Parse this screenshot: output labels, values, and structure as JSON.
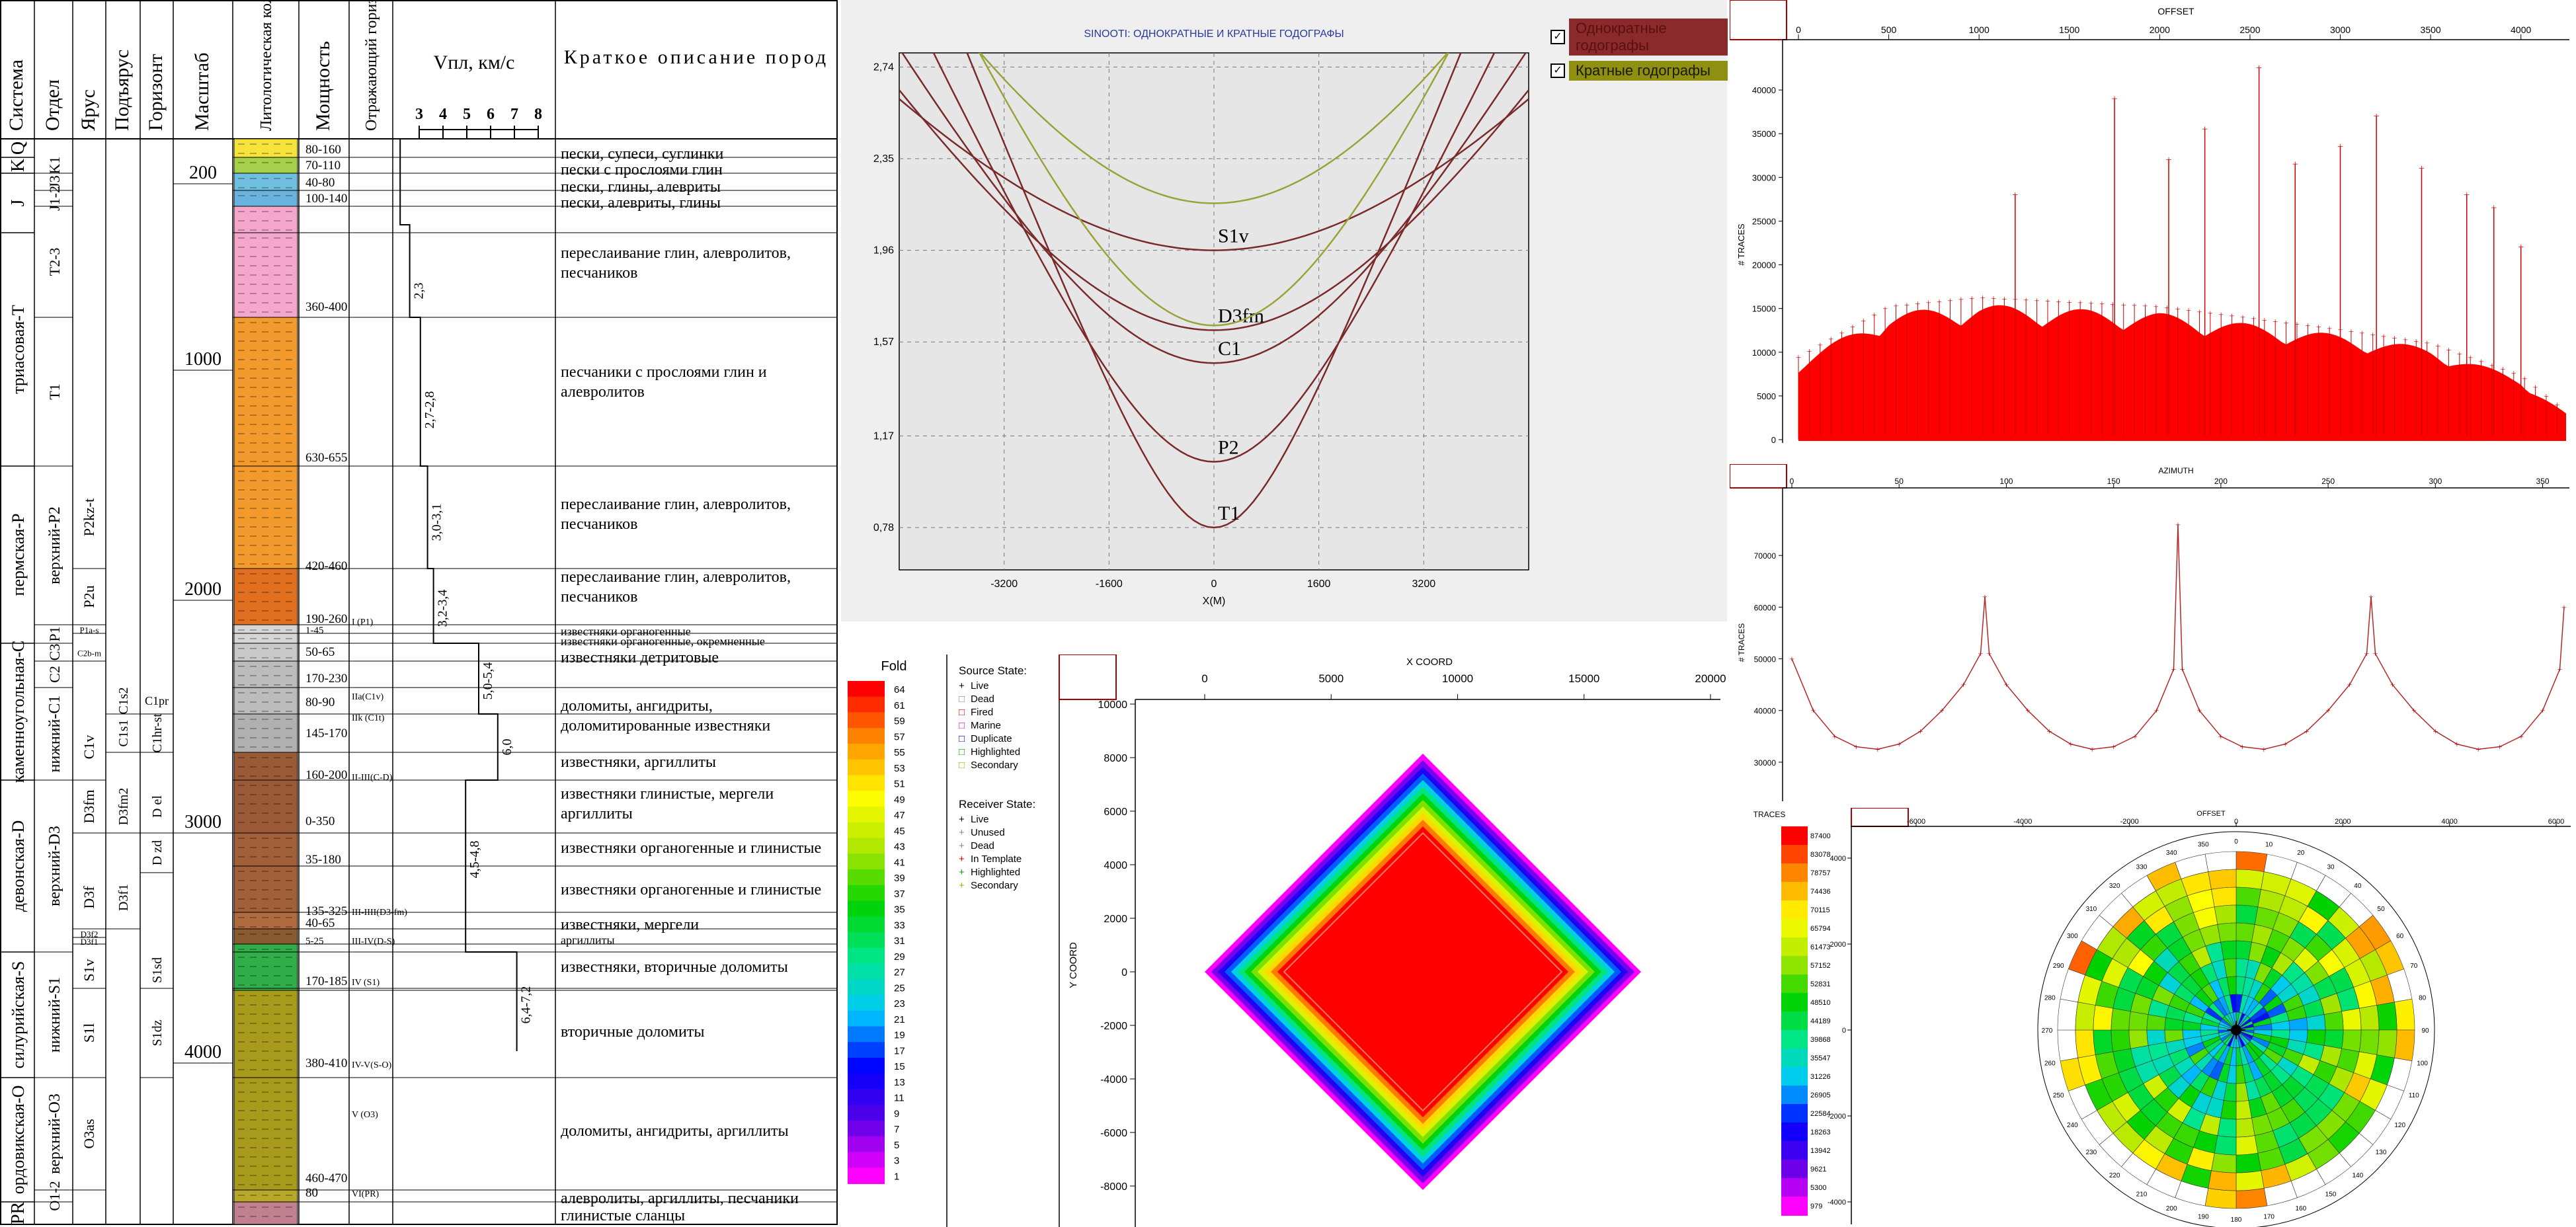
{
  "colors": {
    "section_grid": "#000000",
    "hodo_single": "#7a2a2a",
    "hodo_multiple": "#9aa23a",
    "hodo_bg": "#ececec",
    "fold_red": "#ff0000",
    "trace_red": "#ff0000",
    "azimuth_line": "#b42828"
  },
  "column_headers": {
    "system": "Система",
    "division": "Отдел",
    "stage": "Ярус",
    "substage": "Подъярус",
    "horizon": "Горизонт",
    "scale": "Масштаб",
    "lithology": "Литологическая колонка",
    "thickness": "Мощность",
    "reflector": "Отражающий горизонт",
    "velocity": "Vпл, км/с",
    "description": "Краткое описание пород"
  },
  "velocity_ticks": [
    "3",
    "4",
    "5",
    "6",
    "7",
    "8"
  ],
  "scale_marks": [
    "200",
    "1000",
    "2000",
    "3000",
    "4000"
  ],
  "systems": [
    "Q",
    "K",
    "J",
    "триасовая-T",
    "пермская-P",
    "каменноугольная-C",
    "девонская-D",
    "силурийская-S",
    "ордовикская-O",
    "PR"
  ],
  "divisions": [
    "K1",
    "J3",
    "J1-2",
    "T2-3",
    "T1",
    "верхний-P2",
    "P1",
    "C3",
    "C2",
    "нижний-C1",
    "верхний-D3",
    "нижний-S1",
    "верхний-O3",
    "O1-2"
  ],
  "stages": [
    "P2kz-t",
    "P2u",
    "P1a-s",
    "C2b-m",
    "C1v",
    "D3fm",
    "D3f",
    "D3f2",
    "D3f1",
    "S1v",
    "S1l",
    "O3as"
  ],
  "substages": [
    "C1s2",
    "C1s1",
    "D3fm2",
    "D3f1"
  ],
  "horizons": [
    "C1pr",
    "C1hr-st",
    "D el",
    "D zd",
    "S1sd",
    "S1dz"
  ],
  "thickness": [
    "80-160",
    "70-110",
    "40-80",
    "100-140",
    "360-400",
    "630-655",
    "420-460",
    "190-260",
    "1-45",
    "50-65",
    "170-230",
    "80-90",
    "145-170",
    "160-200",
    "0-350",
    "35-180",
    "135-325",
    "40-65",
    "5-25",
    "170-185",
    "380-410",
    "460-470",
    "80"
  ],
  "reflectors": [
    "I (P1)",
    "IIa(C1v)",
    "IIk (C1t)",
    "II-III(C-D)",
    "III-IIII(D3-fm)",
    "III-IV(D-S)",
    "IV (S1)",
    "IV-V(S-O)",
    "V (O3)",
    "VI(PR)"
  ],
  "velocity_labels": [
    "2,3",
    "2,7-2,8",
    "3,0-3,1",
    "3,2-3,4",
    "5,0-5,4",
    "6,0",
    "4,5-4,8",
    "6,4-7,2"
  ],
  "descriptions": [
    "пески, супеси, суглинки",
    "пески с прослоями глин",
    "пески, глины, алевриты",
    "пески, алевриты, глины",
    "переслаивание глин, алевролитов, песчаников",
    "песчаники с прослоями глин и алевролитов",
    "переслаивание глин, алевролитов, песчаников",
    "переслаивание глин, алевролитов, песчаников",
    "известняки органогенные",
    "известняки органогенные, окремненные",
    "известняки детритовые",
    "доломиты, ангидриты, доломитированные известняки",
    "известняки, аргиллиты",
    "известняки глинистые, мергели аргиллиты",
    "известняки органогенные и глинистые",
    "известняки органогенные и глинистые",
    "известняки, мергели",
    "аргиллиты",
    "известняки, вторичные доломиты",
    "вторичные доломиты",
    "доломиты, ангидриты, аргиллиты",
    "алевролиты, аргиллиты, песчаники",
    "глинистые сланцы"
  ],
  "hodograph": {
    "title": "SINOOTI: ОДНОКРАТНЫЕ И КРАТНЫЕ ГОДОГРАФЫ",
    "legend_single": "Однократные годографы",
    "legend_multiple": "Кратные годографы",
    "xlabel": "X(M)",
    "x_ticks": [
      "-3200",
      "-1600",
      "0",
      "1600",
      "3200"
    ],
    "y_ticks": [
      "2,74",
      "2,35",
      "1,96",
      "1,57",
      "1,17",
      "0,78"
    ],
    "curve_labels": [
      "S1v",
      "D3fm",
      "C1",
      "P2",
      "T1"
    ]
  },
  "fold_map": {
    "legend_title": "Fold",
    "legend_values": [
      "64",
      "61",
      "59",
      "57",
      "55",
      "53",
      "51",
      "49",
      "47",
      "45",
      "43",
      "41",
      "39",
      "37",
      "35",
      "33",
      "31",
      "29",
      "27",
      "25",
      "23",
      "21",
      "19",
      "17",
      "15",
      "13",
      "11",
      "9",
      "7",
      "5",
      "3",
      "1"
    ],
    "x_title": "X COORD",
    "y_title": "Y COORD",
    "x_ticks": [
      "0",
      "5000",
      "10000",
      "15000",
      "20000"
    ],
    "y_ticks": [
      "10000",
      "8000",
      "6000",
      "4000",
      "2000",
      "0",
      "-2000",
      "-4000",
      "-6000",
      "-8000"
    ],
    "source_state_title": "Source State:",
    "source_states": [
      "Live",
      "Dead",
      "Fired",
      "Marine",
      "Duplicate",
      "Highlighted",
      "Secondary"
    ],
    "receiver_state_title": "Receiver State:",
    "receiver_states": [
      "Live",
      "Unused",
      "Dead",
      "In Template",
      "Highlighted",
      "Secondary"
    ]
  },
  "offset_hist": {
    "title": "OFFSET",
    "ylabel": "# TRACES",
    "x_ticks": [
      "0",
      "500",
      "1000",
      "1500",
      "2000",
      "2500",
      "3000",
      "3500",
      "4000"
    ],
    "y_ticks": [
      "40000",
      "35000",
      "30000",
      "25000",
      "20000",
      "15000",
      "10000",
      "5000",
      "0"
    ]
  },
  "azimuth_plot": {
    "title": "AZIMUTH",
    "ylabel": "# TRACES",
    "x_ticks": [
      "0",
      "50",
      "100",
      "150",
      "200",
      "250",
      "300",
      "350"
    ],
    "y_ticks": [
      "70000",
      "60000",
      "50000",
      "40000",
      "30000"
    ]
  },
  "rose": {
    "title": "OFFSET",
    "legend_title": "TRACES",
    "x_ticks": [
      "-6000",
      "-4000",
      "-2000",
      "0",
      "2000",
      "4000",
      "6000"
    ],
    "y_ticks": [
      "4000",
      "2000",
      "0",
      "-2000",
      "-4000"
    ],
    "azimuth_labels": [
      "0",
      "10",
      "20",
      "30",
      "40",
      "50",
      "60",
      "70",
      "80",
      "90",
      "100",
      "110",
      "120",
      "130",
      "140",
      "150",
      "160",
      "170",
      "180",
      "190",
      "200",
      "210",
      "220",
      "230",
      "240",
      "250",
      "260",
      "270",
      "280",
      "290",
      "300",
      "310",
      "320",
      "330",
      "340",
      "350"
    ],
    "legend_values": [
      "87400",
      "83078",
      "78757",
      "74436",
      "70115",
      "65794",
      "61473",
      "57152",
      "52831",
      "48510",
      "44189",
      "39868",
      "35547",
      "31226",
      "26905",
      "22584",
      "18263",
      "13942",
      "9621",
      "5300",
      "979"
    ]
  },
  "chart_data": [
    {
      "type": "line",
      "title": "SINOOTI: ОДНОКРАТНЫЕ И КРАТНЫЕ ГОДОГРАФЫ",
      "xlabel": "X(M)",
      "ylabel": "",
      "xlim": [
        -4800,
        4800
      ],
      "ylim": [
        0.6,
        2.8
      ],
      "series": [
        {
          "name": "S1v",
          "kind": "single",
          "t0": 1.96,
          "vrms": 5.6
        },
        {
          "name": "D3fm",
          "kind": "single",
          "t0": 1.62,
          "vrms": 4.6
        },
        {
          "name": "C1",
          "kind": "single",
          "t0": 1.48,
          "vrms": 4.0
        },
        {
          "name": "P2",
          "kind": "single",
          "t0": 1.06,
          "vrms": 3.3
        },
        {
          "name": "T1",
          "kind": "single",
          "t0": 0.78,
          "vrms": 2.8
        },
        {
          "name": "",
          "kind": "multiple",
          "t0": 2.16,
          "vrms": 4.0
        },
        {
          "name": "",
          "kind": "multiple",
          "t0": 1.64,
          "vrms": 3.15
        }
      ]
    },
    {
      "type": "bar",
      "title": "OFFSET",
      "ylabel": "# TRACES",
      "xlim": [
        0,
        4250
      ],
      "ylim": [
        0,
        45000
      ],
      "envelope": [
        {
          "x": 0,
          "y": 9000
        },
        {
          "x": 500,
          "y": 14500
        },
        {
          "x": 1000,
          "y": 15500
        },
        {
          "x": 2000,
          "y": 14500
        },
        {
          "x": 3000,
          "y": 12000
        },
        {
          "x": 3500,
          "y": 10500
        },
        {
          "x": 4000,
          "y": 7000
        },
        {
          "x": 4250,
          "y": 3000
        }
      ],
      "spikes": [
        {
          "x": 2550,
          "y": 42500
        },
        {
          "x": 1750,
          "y": 39000
        },
        {
          "x": 3200,
          "y": 37000
        },
        {
          "x": 2250,
          "y": 35500
        },
        {
          "x": 3000,
          "y": 33500
        },
        {
          "x": 2050,
          "y": 32000
        },
        {
          "x": 3450,
          "y": 31000
        },
        {
          "x": 2750,
          "y": 31500
        },
        {
          "x": 1200,
          "y": 28000
        },
        {
          "x": 3700,
          "y": 28000
        },
        {
          "x": 4000,
          "y": 22000
        },
        {
          "x": 3850,
          "y": 26500
        }
      ]
    },
    {
      "type": "line",
      "title": "AZIMUTH",
      "ylabel": "# TRACES",
      "xlim": [
        0,
        360
      ],
      "ylim": [
        25000,
        80000
      ],
      "series": [
        {
          "name": "",
          "points": [
            {
              "x": 0,
              "y": 50000
            },
            {
              "x": 10,
              "y": 40000
            },
            {
              "x": 20,
              "y": 35000
            },
            {
              "x": 30,
              "y": 33000
            },
            {
              "x": 40,
              "y": 32500
            },
            {
              "x": 50,
              "y": 33500
            },
            {
              "x": 60,
              "y": 36000
            },
            {
              "x": 70,
              "y": 40000
            },
            {
              "x": 80,
              "y": 45000
            },
            {
              "x": 88,
              "y": 51000
            },
            {
              "x": 90,
              "y": 62000
            },
            {
              "x": 92,
              "y": 51000
            },
            {
              "x": 100,
              "y": 45000
            },
            {
              "x": 110,
              "y": 40000
            },
            {
              "x": 120,
              "y": 36000
            },
            {
              "x": 130,
              "y": 33500
            },
            {
              "x": 140,
              "y": 32500
            },
            {
              "x": 150,
              "y": 33000
            },
            {
              "x": 160,
              "y": 35000
            },
            {
              "x": 170,
              "y": 40000
            },
            {
              "x": 178,
              "y": 48000
            },
            {
              "x": 180,
              "y": 76000
            },
            {
              "x": 182,
              "y": 48000
            },
            {
              "x": 190,
              "y": 40000
            },
            {
              "x": 200,
              "y": 35000
            },
            {
              "x": 210,
              "y": 33000
            },
            {
              "x": 220,
              "y": 32500
            },
            {
              "x": 230,
              "y": 33500
            },
            {
              "x": 240,
              "y": 36000
            },
            {
              "x": 250,
              "y": 40000
            },
            {
              "x": 260,
              "y": 45000
            },
            {
              "x": 268,
              "y": 51000
            },
            {
              "x": 270,
              "y": 62000
            },
            {
              "x": 272,
              "y": 51000
            },
            {
              "x": 280,
              "y": 45000
            },
            {
              "x": 290,
              "y": 40000
            },
            {
              "x": 300,
              "y": 36000
            },
            {
              "x": 310,
              "y": 33500
            },
            {
              "x": 320,
              "y": 32500
            },
            {
              "x": 330,
              "y": 33000
            },
            {
              "x": 340,
              "y": 35000
            },
            {
              "x": 350,
              "y": 40000
            },
            {
              "x": 358,
              "y": 48000
            },
            {
              "x": 360,
              "y": 60000
            }
          ]
        }
      ]
    }
  ]
}
